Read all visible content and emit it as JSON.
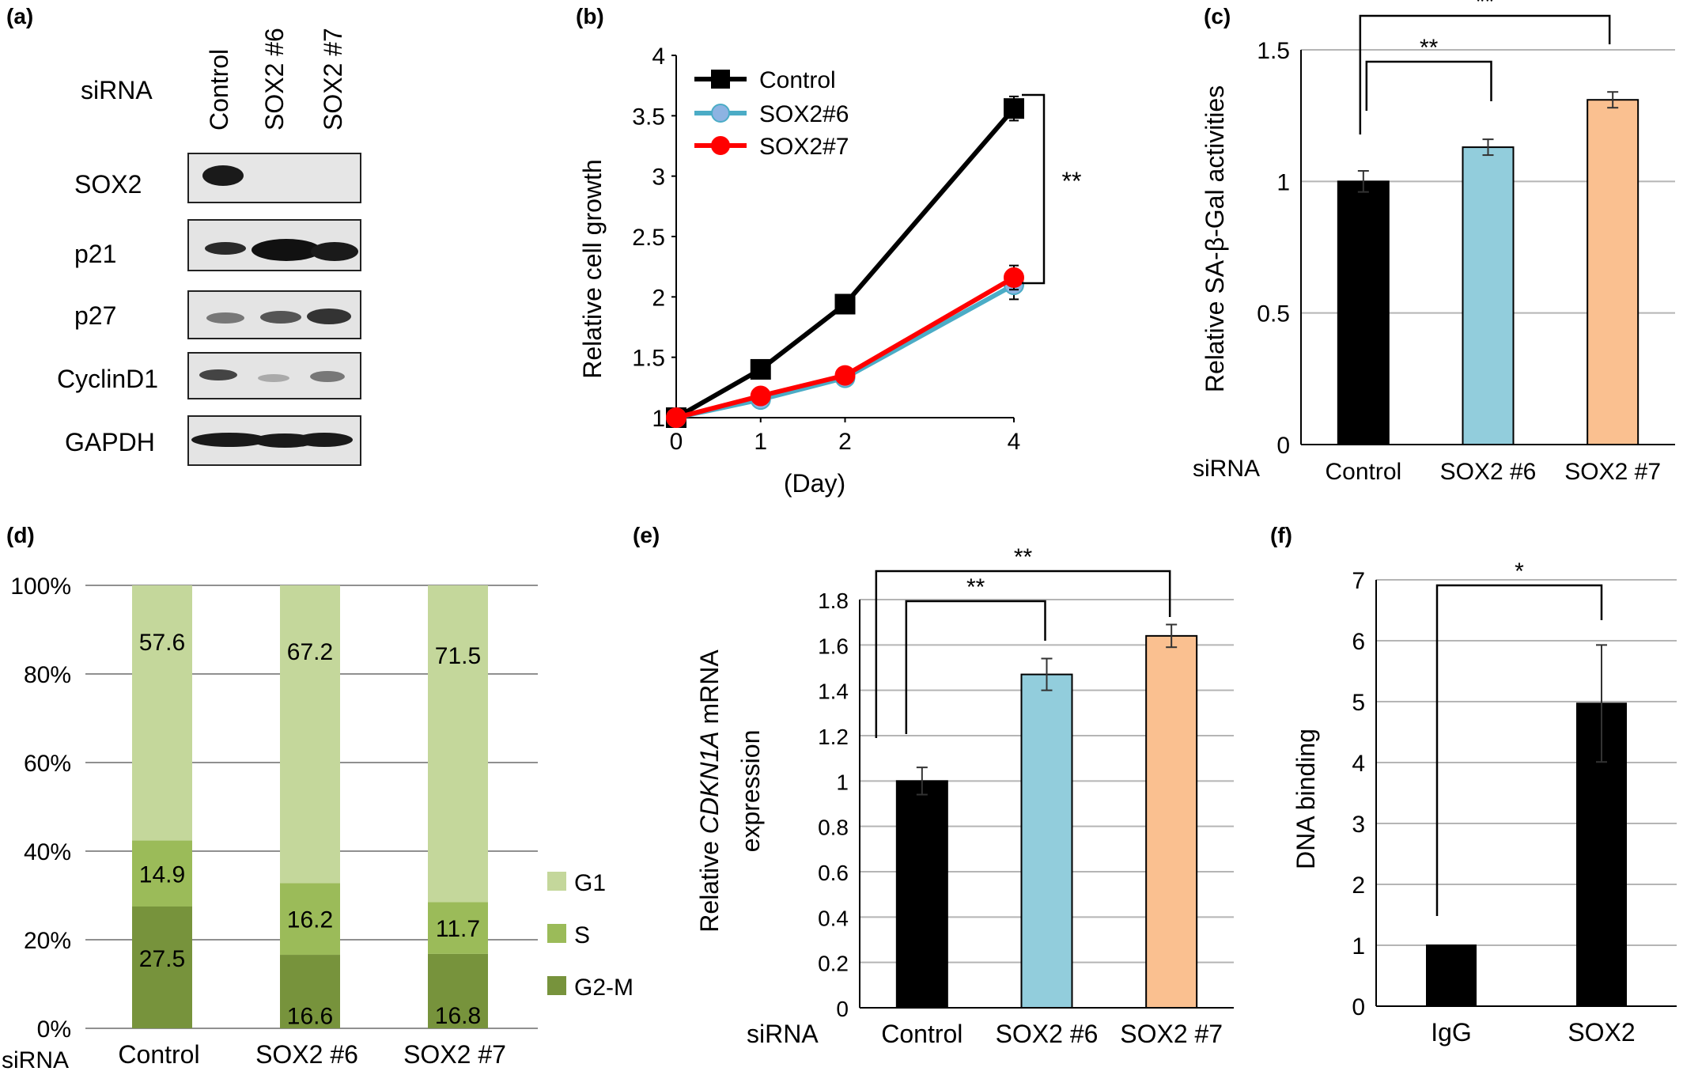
{
  "panels": {
    "a": {
      "label": "(a)",
      "row_title": "siRNA",
      "lanes": [
        "Control",
        "SOX2 #6",
        "SOX2 #7"
      ],
      "blots": [
        "SOX2",
        "p21",
        "p27",
        "CyclinD1",
        "GAPDH"
      ]
    },
    "b": {
      "label": "(b)"
    },
    "c": {
      "label": "(c)"
    },
    "d": {
      "label": "(d)"
    },
    "e": {
      "label": "(e)"
    },
    "f": {
      "label": "(f)"
    }
  },
  "colors": {
    "black": "#000000",
    "blue": "#92CDDC",
    "orange": "#FAC090",
    "g1": "#C4D79B",
    "s": "#9BBB59",
    "g2m": "#77933C",
    "control_line": "#000000",
    "sox2_6_line": "#4BACC6",
    "sox2_6_fill": "#8DB3E2",
    "sox2_7_line": "#FF0000"
  },
  "chart_data": [
    {
      "panel": "b",
      "type": "line",
      "ylabel": "Relative cell growth",
      "xlabel": "(Day)",
      "x": [
        0,
        1,
        2,
        4
      ],
      "xticks": [
        "0",
        "1",
        "2",
        "4"
      ],
      "ylim": [
        1,
        4
      ],
      "yticks": [
        "1",
        "1.5",
        "2",
        "2.5",
        "3",
        "3.5",
        "4"
      ],
      "series": [
        {
          "name": "Control",
          "values": [
            1.0,
            1.4,
            1.94,
            3.56
          ],
          "errors": [
            0,
            0,
            0,
            0.1
          ]
        },
        {
          "name": "SOX2#6",
          "values": [
            1.0,
            1.15,
            1.33,
            2.1
          ],
          "errors": [
            0,
            0,
            0,
            0.12
          ]
        },
        {
          "name": "SOX2#7",
          "values": [
            1.0,
            1.18,
            1.35,
            2.16
          ],
          "errors": [
            0,
            0,
            0,
            0.1
          ]
        }
      ],
      "annotations": [
        "**"
      ]
    },
    {
      "panel": "c",
      "type": "bar",
      "ylabel": "Relative SA-β-Gal activities",
      "row_title": "siRNA",
      "categories": [
        "Control",
        "SOX2 #6",
        "SOX2 #7"
      ],
      "values": [
        1.0,
        1.13,
        1.31
      ],
      "errors": [
        0.04,
        0.03,
        0.03
      ],
      "ylim": [
        0,
        1.5
      ],
      "yticks": [
        "0",
        "0.5",
        "1",
        "1.5"
      ],
      "grid": true,
      "annotations": [
        "**",
        "**"
      ]
    },
    {
      "panel": "d",
      "type": "bar",
      "stacked": true,
      "row_title": "siRNA",
      "categories": [
        "Control",
        "SOX2 #6",
        "SOX2 #7"
      ],
      "yticks": [
        "0%",
        "20%",
        "40%",
        "60%",
        "80%",
        "100%"
      ],
      "legend_position": "right",
      "series": [
        {
          "name": "G2-M",
          "values": [
            27.5,
            16.6,
            16.8
          ],
          "labels": [
            "27.5",
            "16.6",
            "16.8"
          ]
        },
        {
          "name": "S",
          "values": [
            14.9,
            16.2,
            11.7
          ],
          "labels": [
            "14.9",
            "16.2",
            "11.7"
          ]
        },
        {
          "name": "G1",
          "values": [
            57.6,
            67.2,
            71.5
          ],
          "labels": [
            "57.6",
            "67.2",
            "71.5"
          ]
        }
      ],
      "grid": true
    },
    {
      "panel": "e",
      "type": "bar",
      "ylabel_parts": [
        "Relative ",
        "CDKN1A",
        " mRNA"
      ],
      "ylabel_line2": "expression",
      "row_title": "siRNA",
      "categories": [
        "Control",
        "SOX2 #6",
        "SOX2 #7"
      ],
      "values": [
        1.0,
        1.47,
        1.64
      ],
      "errors": [
        0.06,
        0.07,
        0.05
      ],
      "ylim": [
        0,
        1.8
      ],
      "yticks": [
        "0",
        "0.2",
        "0.4",
        "0.6",
        "0.8",
        "1",
        "1.2",
        "1.4",
        "1.6",
        "1.8"
      ],
      "grid": true,
      "annotations": [
        "**",
        "**"
      ]
    },
    {
      "panel": "f",
      "type": "bar",
      "ylabel": "DNA binding",
      "categories": [
        "IgG",
        "SOX2"
      ],
      "values": [
        1.0,
        4.97
      ],
      "errors": [
        0,
        0.96
      ],
      "ylim": [
        0,
        7
      ],
      "yticks": [
        "0",
        "1",
        "2",
        "3",
        "4",
        "5",
        "6",
        "7"
      ],
      "grid": true,
      "annotations": [
        "*"
      ]
    }
  ]
}
